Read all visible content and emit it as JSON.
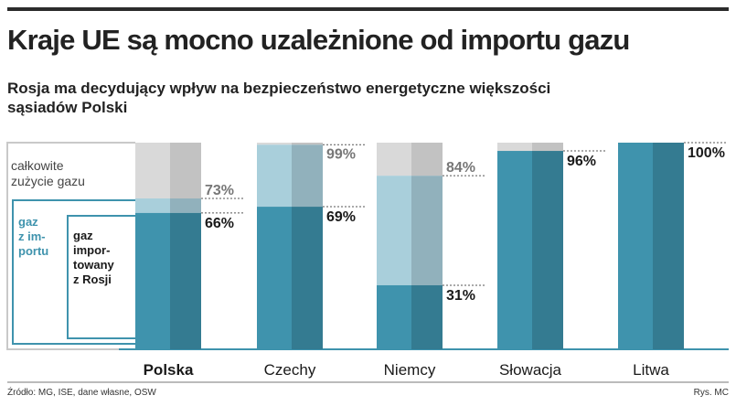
{
  "header": {
    "title": "Kraje UE są mocno uzależnione od importu gazu",
    "subtitle": "Rosja ma decydujący wpływ na bezpieczeństwo energetyczne większości sąsiadów Polski"
  },
  "legend": {
    "total": [
      "całkowite",
      "zużycie gazu"
    ],
    "imported": [
      "gaz",
      "z im-",
      "portu"
    ],
    "russia": [
      "gaz",
      "impor-",
      "towany",
      "z Rosji"
    ]
  },
  "footer": {
    "source": "Źródło: MG, ISE, dane własne, OSW",
    "credit": "Rys. MC"
  },
  "colors": {
    "total": "#d9d9d9",
    "imported": "#a9cfdb",
    "russia": "#3f93ad",
    "outline": "#3f93ad"
  },
  "chart_data": {
    "type": "bar",
    "categories": [
      "Polska",
      "Czechy",
      "Niemcy",
      "Słowacja",
      "Litwa"
    ],
    "highlight_category": "Polska",
    "ylim": [
      0,
      100
    ],
    "series": [
      {
        "name": "gaz z importu",
        "values": [
          73,
          99,
          84,
          96,
          100
        ]
      },
      {
        "name": "gaz importowany z Rosji",
        "values": [
          66,
          69,
          31,
          96,
          100
        ]
      }
    ],
    "labels": {
      "imported": [
        "73%",
        "99%",
        "84%",
        null,
        null
      ],
      "russia": [
        "66%",
        "69%",
        "31%",
        "96%",
        "100%"
      ]
    }
  }
}
